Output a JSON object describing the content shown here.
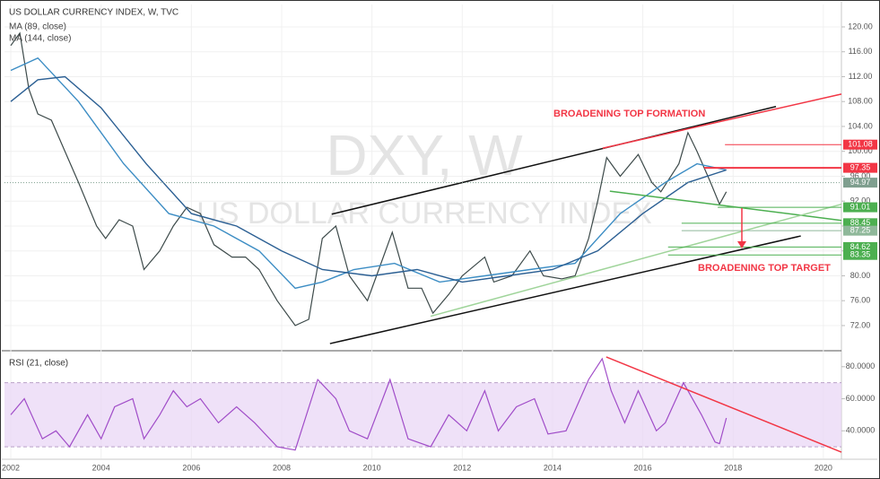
{
  "chart_data": [
    {
      "type": "line",
      "title": "US DOLLAR CURRENCY INDEX, W, TVC",
      "watermark": "DXY, W",
      "watermark_subtitle": "US DOLLAR CURRENCY INDEX",
      "annotations": [
        "BROADENING TOP FORMATION",
        "BROADENING TOP TARGET"
      ],
      "annotation_color": "#f23645",
      "xlim": [
        2001.86,
        2020.4
      ],
      "ylim": [
        68.1,
        123.6
      ],
      "yticks": [
        {
          "value": 72,
          "label": "72.00"
        },
        {
          "value": 76,
          "label": "76.00"
        },
        {
          "value": 80,
          "label": "80.00"
        },
        {
          "value": 84,
          "label": "84.00"
        },
        {
          "value": 88,
          "label": "88.00"
        },
        {
          "value": 92,
          "label": "92.00"
        },
        {
          "value": 96,
          "label": "96.00"
        },
        {
          "value": 100,
          "label": "100.00"
        },
        {
          "value": 104,
          "label": "104.00"
        },
        {
          "value": 108,
          "label": "108.00"
        },
        {
          "value": 112,
          "label": "112.00"
        },
        {
          "value": 116,
          "label": "116.00"
        },
        {
          "value": 120,
          "label": "120.00"
        }
      ],
      "grid": true,
      "series": [
        {
          "color": "#3d4a4a",
          "x": [
            2002.0,
            2002.2,
            2002.4,
            2002.6,
            2002.9,
            2003.2,
            2003.5,
            2003.9,
            2004.1,
            2004.4,
            2004.7,
            2004.95,
            2005.3,
            2005.6,
            2005.9,
            2006.2,
            2006.5,
            2006.9,
            2007.2,
            2007.5,
            2007.9,
            2008.3,
            2008.6,
            2008.9,
            2009.2,
            2009.5,
            2009.9,
            2010.1,
            2010.45,
            2010.8,
            2011.1,
            2011.35,
            2011.7,
            2012.0,
            2012.5,
            2012.7,
            2013.1,
            2013.5,
            2013.8,
            2014.2,
            2014.5,
            2014.8,
            2015.0,
            2015.2,
            2015.5,
            2015.9,
            2016.2,
            2016.4,
            2016.8,
            2017.0,
            2017.2,
            2017.5,
            2017.7,
            2017.85
          ],
          "values": [
            117,
            119,
            110,
            106,
            105,
            100,
            95,
            88,
            86,
            89,
            88,
            81,
            84,
            88,
            91,
            90,
            85,
            83,
            83,
            81,
            76,
            72,
            73,
            86,
            88,
            80,
            76,
            80,
            87,
            78,
            78,
            74,
            77,
            80,
            83,
            79,
            80,
            84,
            80,
            79.5,
            80,
            86,
            92,
            99,
            96,
            99.5,
            95,
            93.5,
            98,
            103,
            100,
            95,
            91.5,
            93.5
          ]
        },
        {
          "name": "MA (89, close)",
          "color": "#3c8dc4",
          "x": [
            2002.0,
            2002.6,
            2003.5,
            2004.5,
            2005.5,
            2006.5,
            2007.5,
            2008.3,
            2008.9,
            2009.6,
            2010.5,
            2011.5,
            2012.5,
            2013.5,
            2014.5,
            2015.5,
            2016.5,
            2017.2,
            2017.85
          ],
          "values": [
            113,
            115,
            108,
            98,
            90,
            88,
            84,
            78,
            79,
            81,
            82,
            79,
            80,
            81,
            82,
            90,
            95,
            98,
            97
          ]
        },
        {
          "name": "MA (144, close)",
          "color": "#2b5f93",
          "x": [
            2002.0,
            2002.6,
            2003.2,
            2004.0,
            2005.0,
            2006.0,
            2007.0,
            2008.0,
            2008.9,
            2010.0,
            2011.0,
            2012.0,
            2013.0,
            2014.0,
            2015.0,
            2016.0,
            2017.0,
            2017.85
          ],
          "values": [
            108,
            111.5,
            112,
            107,
            98,
            90,
            88,
            84,
            81,
            80,
            81,
            79,
            80,
            81,
            84,
            90,
            95,
            97
          ]
        }
      ],
      "lines": [
        {
          "color": "#111111",
          "x": [
            2009.11,
            2018.95
          ],
          "y": [
            89.9,
            107.2
          ]
        },
        {
          "color": "#111111",
          "x": [
            2009.07,
            2019.5
          ],
          "y": [
            69.1,
            86.4
          ]
        },
        {
          "color": "#f23645",
          "x": [
            2015.11,
            2020.4
          ],
          "y": [
            100.5,
            109.2
          ]
        },
        {
          "color": "#4caf50",
          "x": [
            2015.27,
            2020.4
          ],
          "y": [
            93.6,
            88.9
          ]
        },
        {
          "color": "#9fd49a",
          "x": [
            2011.3,
            2020.4
          ],
          "y": [
            73.5,
            91.5
          ]
        }
      ],
      "levels": [
        {
          "value": 101.08,
          "color": "#f23645",
          "from": 2017.82
        },
        {
          "value": 97.35,
          "color": "#f23645",
          "from": 2017.36
        },
        {
          "value": 94.97,
          "color": "#7f9f8f",
          "from": 2001.86
        },
        {
          "value": 91.01,
          "color": "#4caf50",
          "from": 2017.66
        },
        {
          "value": 88.45,
          "color": "#4caf50",
          "from": 2016.86
        },
        {
          "value": 87.25,
          "color": "#8fb89a",
          "from": 2016.86
        },
        {
          "value": 84.62,
          "color": "#4caf50",
          "from": 2016.56
        },
        {
          "value": 83.35,
          "color": "#4caf50",
          "from": 2016.56
        }
      ]
    },
    {
      "type": "line",
      "title": "RSI (21, close)",
      "xlim": [
        2001.86,
        2020.4
      ],
      "xticks": [
        2002,
        2004,
        2006,
        2008,
        2010,
        2012,
        2014,
        2016,
        2018,
        2020
      ],
      "ylim": [
        22.8,
        89.4
      ],
      "yticks": [
        {
          "value": 40,
          "label": "40.0000"
        },
        {
          "value": 60,
          "label": "60.0000"
        },
        {
          "value": 80,
          "label": "80.0000"
        }
      ],
      "band": [
        30,
        70
      ],
      "band_color": "#e8d4f5",
      "series": [
        {
          "color": "#a04cc8",
          "x": [
            2002.0,
            2002.3,
            2002.7,
            2003.0,
            2003.3,
            2003.7,
            2004.0,
            2004.3,
            2004.7,
            2004.95,
            2005.3,
            2005.6,
            2005.9,
            2006.2,
            2006.6,
            2007.0,
            2007.4,
            2007.9,
            2008.3,
            2008.8,
            2009.2,
            2009.5,
            2009.9,
            2010.4,
            2010.8,
            2011.3,
            2011.7,
            2012.1,
            2012.5,
            2012.8,
            2013.2,
            2013.6,
            2013.9,
            2014.3,
            2014.8,
            2015.1,
            2015.3,
            2015.6,
            2015.9,
            2016.3,
            2016.5,
            2016.9,
            2017.3,
            2017.6,
            2017.7,
            2017.85
          ],
          "values": [
            50,
            60,
            35,
            40,
            30,
            50,
            35,
            55,
            60,
            35,
            50,
            65,
            55,
            60,
            45,
            55,
            45,
            30,
            28,
            72,
            60,
            40,
            35,
            72,
            35,
            30,
            50,
            40,
            65,
            40,
            55,
            60,
            38,
            40,
            72,
            85,
            65,
            45,
            65,
            40,
            45,
            70,
            50,
            33,
            32,
            48
          ]
        }
      ],
      "lines": [
        {
          "color": "#f23645",
          "x": [
            2015.19,
            2020.4
          ],
          "y": [
            86.1,
            26.7
          ]
        }
      ]
    }
  ]
}
